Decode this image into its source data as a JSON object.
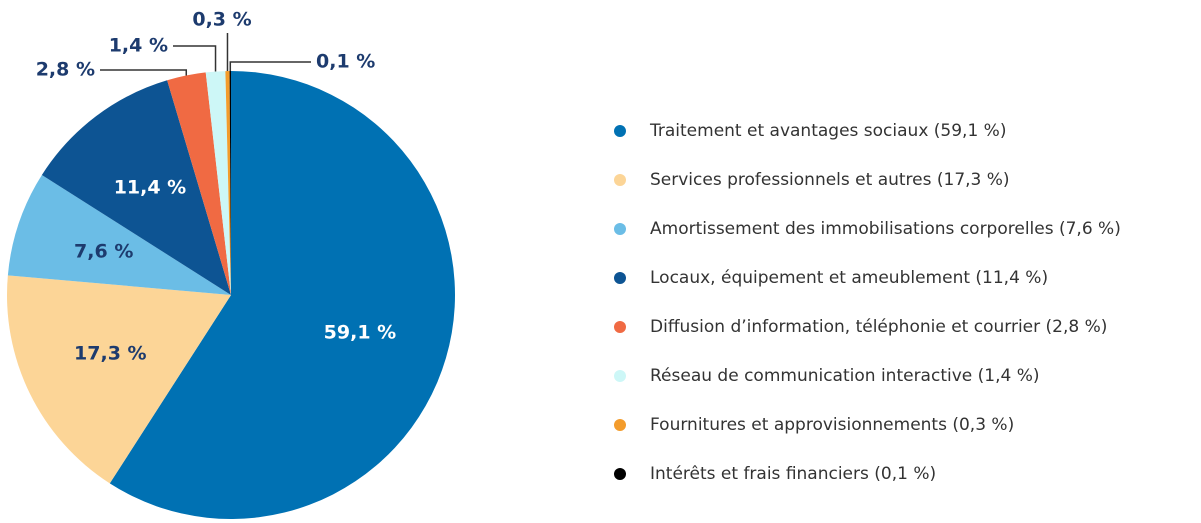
{
  "chart_data": {
    "type": "pie",
    "categories": [
      "Traitement et avantages sociaux (59,1 %)",
      "Services professionnels et autres (17,3 %)",
      "Amortissement des immobilisations corporelles (7,6 %)",
      "Locaux, équipement et ameublement (11,4 %)",
      "Diffusion d’information, téléphonie et courrier (2,8 %)",
      "Réseau de communication interactive (1,4 %)",
      "Fournitures et approvisionnements (0,3 %)",
      "Intérêts et frais financiers (0,1 %)"
    ],
    "values": [
      59.1,
      17.3,
      7.6,
      11.4,
      2.8,
      1.4,
      0.3,
      0.1
    ],
    "value_labels": [
      "59,1 %",
      "17,3 %",
      "7,6 %",
      "11,4 %",
      "2,8 %",
      "1,4 %",
      "0,3 %",
      "0,1 %"
    ],
    "colors": [
      "#0071b3",
      "#fcd597",
      "#6bbde6",
      "#0d5493",
      "#f06a43",
      "#cdf7f7",
      "#f39c2c",
      "#000000"
    ],
    "legend": "right"
  }
}
